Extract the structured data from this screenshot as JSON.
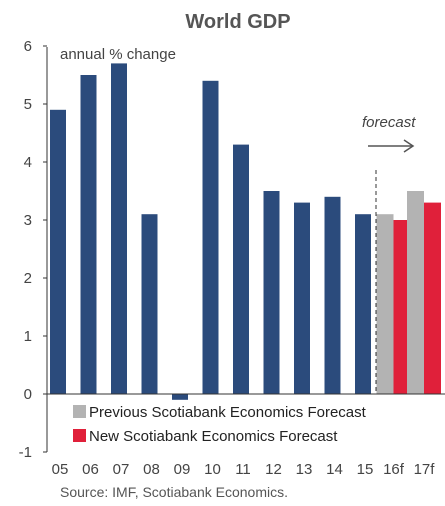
{
  "chart_data": {
    "type": "bar",
    "title": "World GDP",
    "unit_label": "annual % change",
    "categories": [
      "05",
      "06",
      "07",
      "08",
      "09",
      "10",
      "11",
      "12",
      "13",
      "14",
      "15",
      "16f",
      "17f"
    ],
    "series": [
      {
        "name": "",
        "values": [
          4.9,
          5.5,
          5.7,
          3.1,
          -0.1,
          5.4,
          4.3,
          3.5,
          3.3,
          3.4,
          3.1,
          null,
          null
        ],
        "color": "#2b4b7c"
      },
      {
        "name": "Previous Scotiabank Economics Forecast",
        "values": [
          null,
          null,
          null,
          null,
          null,
          null,
          null,
          null,
          null,
          null,
          null,
          3.1,
          3.5
        ],
        "color": "#b3b3b3"
      },
      {
        "name": "New Scotiabank Economics Forecast",
        "values": [
          null,
          null,
          null,
          null,
          null,
          null,
          null,
          null,
          null,
          null,
          null,
          3.0,
          3.3
        ],
        "color": "#e0203a"
      }
    ],
    "ylim": [
      -1,
      6
    ],
    "yticks": [
      "-1",
      "0",
      "1",
      "2",
      "3",
      "4",
      "5",
      "6"
    ],
    "forecast_label": "forecast",
    "legend_position": "bottom-left, inside plot"
  },
  "source": "Source: IMF, Scotiabank Economics."
}
